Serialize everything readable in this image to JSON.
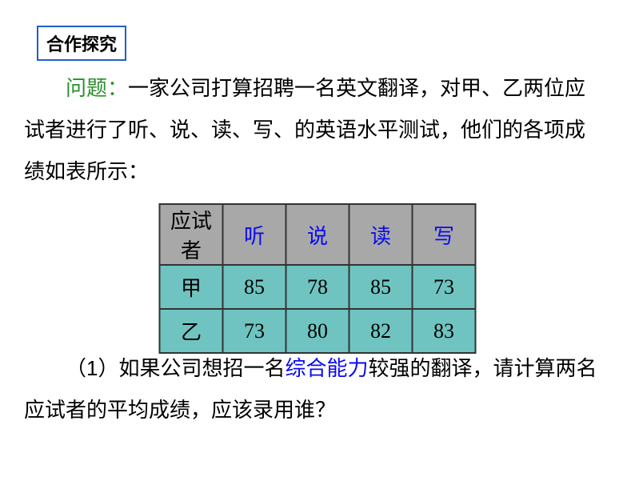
{
  "badge": "合作探究",
  "question_label": "问题：",
  "para_text_1": "一家公司打算招聘一名英文翻译，对甲、乙两位应试者进行了听、说、读、写、的英语水平测试，他们的各项成绩如表所示：",
  "table": {
    "headers": [
      "应试者",
      "听",
      "说",
      "读",
      "写"
    ],
    "rows": [
      [
        "甲",
        "85",
        "78",
        "85",
        "73"
      ],
      [
        "乙",
        "73",
        "80",
        "82",
        "83"
      ]
    ],
    "header_bg": "#a8a8a8",
    "cell_bg": "#6fc4c1",
    "border_color": "#333333",
    "skill_color": "#0a0af0"
  },
  "footer_prefix": "（1）如果公司想招一名",
  "footer_highlight": "综合能力",
  "footer_suffix": "较强的翻译，请计算两名应试者的平均成绩，应该录用谁？",
  "colors": {
    "badge_border": "#2060c8",
    "question_label": "#2b8f2b",
    "text": "#000000",
    "highlight": "#0a0af0"
  },
  "fonts": {
    "body_size": 26,
    "badge_size": 22
  }
}
